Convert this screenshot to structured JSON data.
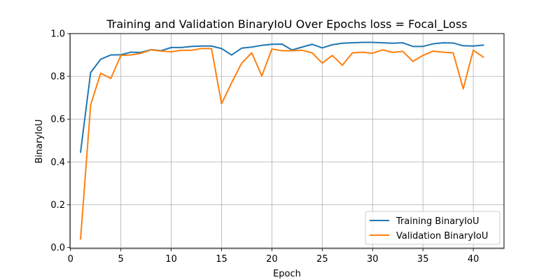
{
  "chart_data": {
    "type": "line",
    "title": "Training and Validation BinaryIoU Over Epochs loss = Focal_Loss",
    "xlabel": "Epoch",
    "ylabel": "BinaryIoU",
    "xlim": [
      -0.05,
      43.05
    ],
    "ylim": [
      -0.005,
      1.0
    ],
    "xticks": [
      0,
      5,
      10,
      15,
      20,
      25,
      30,
      35,
      40
    ],
    "yticks": [
      0.0,
      0.2,
      0.4,
      0.6,
      0.8,
      1.0
    ],
    "grid": true,
    "legend_position": "lower-right",
    "x": [
      1,
      2,
      3,
      4,
      5,
      6,
      7,
      8,
      9,
      10,
      11,
      12,
      13,
      14,
      15,
      16,
      17,
      18,
      19,
      20,
      21,
      22,
      23,
      24,
      25,
      26,
      27,
      28,
      29,
      30,
      31,
      32,
      33,
      34,
      35,
      36,
      37,
      38,
      39,
      40,
      41
    ],
    "series": [
      {
        "name": "Training BinaryIoU",
        "color": "#1f77b4",
        "values": [
          0.446,
          0.818,
          0.88,
          0.9,
          0.901,
          0.913,
          0.912,
          0.925,
          0.92,
          0.935,
          0.935,
          0.94,
          0.942,
          0.942,
          0.93,
          0.9,
          0.932,
          0.937,
          0.945,
          0.95,
          0.951,
          0.923,
          0.937,
          0.95,
          0.933,
          0.948,
          0.955,
          0.957,
          0.959,
          0.959,
          0.957,
          0.955,
          0.957,
          0.94,
          0.94,
          0.952,
          0.957,
          0.956,
          0.943,
          0.942,
          0.946
        ]
      },
      {
        "name": "Validation BinaryIoU",
        "color": "#ff7f0e",
        "values": [
          0.04,
          0.667,
          0.815,
          0.79,
          0.898,
          0.9,
          0.908,
          0.924,
          0.918,
          0.915,
          0.922,
          0.922,
          0.93,
          0.93,
          0.672,
          0.77,
          0.862,
          0.91,
          0.802,
          0.928,
          0.92,
          0.92,
          0.922,
          0.91,
          0.862,
          0.898,
          0.852,
          0.91,
          0.913,
          0.908,
          0.924,
          0.912,
          0.917,
          0.87,
          0.898,
          0.918,
          0.913,
          0.91,
          0.742,
          0.922,
          0.89
        ]
      }
    ]
  }
}
